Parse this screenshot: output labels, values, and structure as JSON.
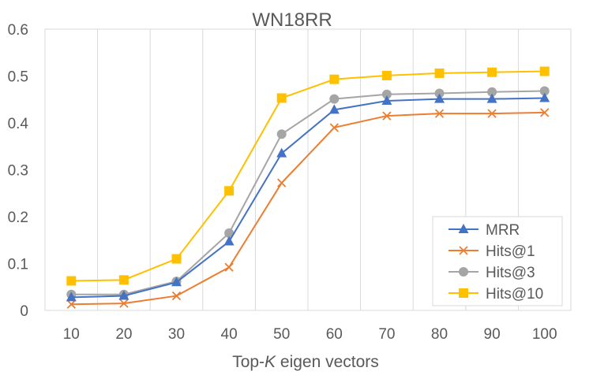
{
  "chart_data": {
    "type": "line",
    "title": "WN18RR",
    "xlabel_prefix": "Top-",
    "xlabel_italic": "K",
    "xlabel_suffix": " eigen vectors",
    "ylabel": "",
    "x": [
      10,
      20,
      30,
      40,
      50,
      60,
      70,
      80,
      90,
      100
    ],
    "x_tick_labels": [
      "10",
      "20",
      "30",
      "40",
      "50",
      "60",
      "70",
      "80",
      "90",
      "100"
    ],
    "ylim": [
      0,
      0.6
    ],
    "y_ticks": [
      0,
      0.1,
      0.2,
      0.3,
      0.4,
      0.5,
      0.6
    ],
    "y_tick_labels": [
      "0",
      "0.1",
      "0.2",
      "0.3",
      "0.4",
      "0.5",
      "0.6"
    ],
    "grid": "vertical",
    "legend_position": "bottom-right",
    "series": [
      {
        "name": "MRR",
        "color": "#4472C4",
        "marker": "triangle",
        "values": [
          0.028,
          0.031,
          0.06,
          0.147,
          0.335,
          0.428,
          0.447,
          0.451,
          0.451,
          0.453
        ]
      },
      {
        "name": "Hits@1",
        "color": "#ED7D31",
        "marker": "x",
        "values": [
          0.013,
          0.015,
          0.031,
          0.092,
          0.272,
          0.39,
          0.415,
          0.42,
          0.42,
          0.422
        ]
      },
      {
        "name": "Hits@3",
        "color": "#A5A5A5",
        "marker": "circle",
        "values": [
          0.034,
          0.034,
          0.062,
          0.165,
          0.376,
          0.451,
          0.461,
          0.463,
          0.466,
          0.468
        ]
      },
      {
        "name": "Hits@10",
        "color": "#FFC000",
        "marker": "square",
        "values": [
          0.063,
          0.065,
          0.11,
          0.255,
          0.453,
          0.493,
          0.501,
          0.506,
          0.508,
          0.51
        ]
      }
    ]
  }
}
